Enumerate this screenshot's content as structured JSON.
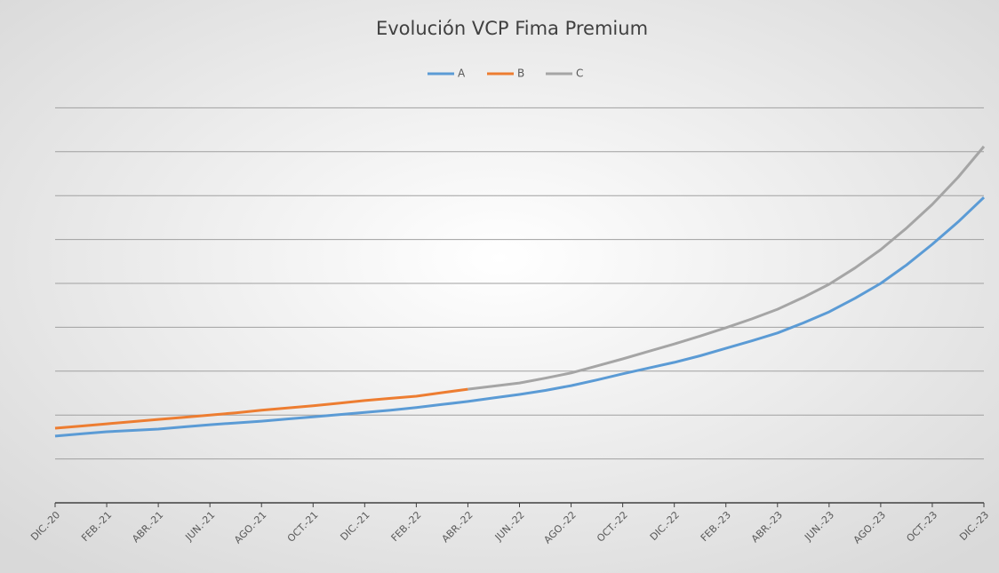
{
  "chart_data": {
    "type": "line",
    "title": "Evolución VCP Fima Premium",
    "categories": [
      "DIC.-20",
      null,
      "FEB.-21",
      null,
      "ABR.-21",
      null,
      "JUN.-21",
      null,
      "AGO.-21",
      null,
      "OCT.-21",
      null,
      "DIC.-21",
      null,
      "FEB.-22",
      null,
      "ABR.-22",
      null,
      "JUN.-22",
      null,
      "AGO.-22",
      null,
      "OCT.-22",
      null,
      "DIC.-22",
      null,
      "FEB.-23",
      null,
      "ABR.-23",
      null,
      "JUN.-23",
      null,
      "AGO.-23",
      null,
      "OCT.-23",
      null,
      "DIC.-23"
    ],
    "series": [
      {
        "name": "A",
        "color": "#5b9bd5",
        "values": [
          1.52,
          1.57,
          1.62,
          1.65,
          1.68,
          1.73,
          1.78,
          1.82,
          1.86,
          1.91,
          1.96,
          2.01,
          2.06,
          2.11,
          2.17,
          2.24,
          2.31,
          2.39,
          2.47,
          2.56,
          2.67,
          2.8,
          2.94,
          3.07,
          3.2,
          3.35,
          3.52,
          3.69,
          3.87,
          4.1,
          4.35,
          4.66,
          5.0,
          5.42,
          5.89,
          6.4,
          6.96
        ]
      },
      {
        "name": "B",
        "color": "#ed7d31",
        "values": [
          1.7,
          1.75,
          1.8,
          1.85,
          1.9,
          1.95,
          2.0,
          2.05,
          2.11,
          2.16,
          2.21,
          2.27,
          2.33,
          2.38,
          2.43,
          2.51,
          2.59,
          null,
          null,
          null,
          null,
          null,
          null,
          null,
          null,
          null,
          null,
          null,
          null,
          null,
          null,
          null,
          null,
          null,
          null,
          null,
          null
        ]
      },
      {
        "name": "C",
        "color": "#a5a5a5",
        "values": [
          null,
          null,
          null,
          null,
          null,
          null,
          null,
          null,
          null,
          null,
          null,
          null,
          null,
          null,
          null,
          null,
          2.59,
          2.66,
          2.73,
          2.84,
          2.96,
          3.12,
          3.28,
          3.45,
          3.62,
          3.8,
          3.99,
          4.19,
          4.41,
          4.68,
          4.98,
          5.35,
          5.77,
          6.26,
          6.8,
          7.42,
          8.12
        ]
      }
    ],
    "ylim": [
      0,
      10
    ],
    "yticks": [
      1,
      2,
      3,
      4,
      5,
      6,
      7,
      8,
      9
    ],
    "grid": true,
    "legend": "top"
  }
}
